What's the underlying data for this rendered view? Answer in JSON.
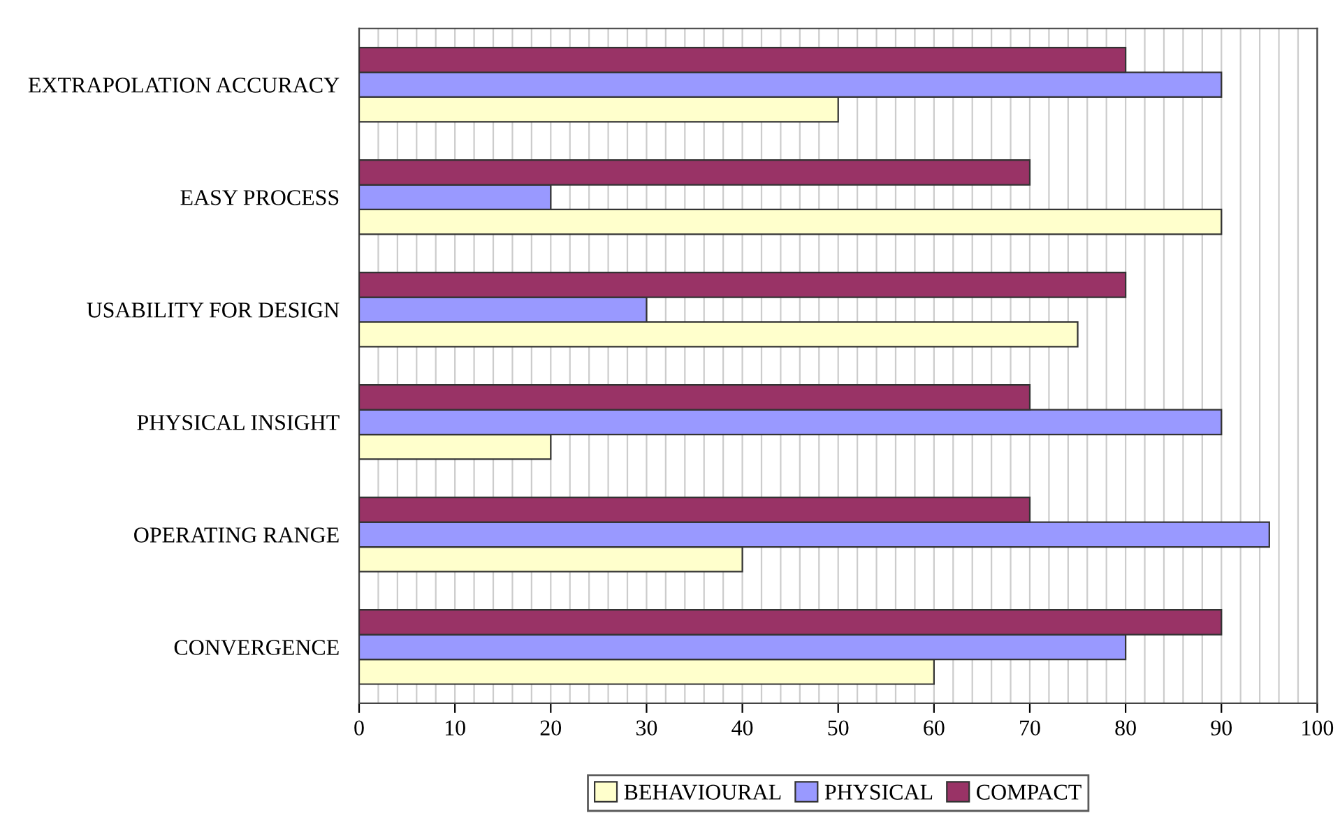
{
  "chart_data": {
    "type": "bar",
    "orientation": "horizontal",
    "categories": [
      "EXTRAPOLATION ACCURACY",
      "EASY PROCESS",
      "USABILITY FOR DESIGN",
      "PHYSICAL INSIGHT",
      "OPERATING RANGE",
      "CONVERGENCE"
    ],
    "series": [
      {
        "name": "BEHAVIOURAL",
        "color": "#ffffcc",
        "values": [
          50,
          90,
          75,
          20,
          40,
          60
        ]
      },
      {
        "name": "PHYSICAL",
        "color": "#9999ff",
        "values": [
          90,
          20,
          30,
          90,
          95,
          80
        ]
      },
      {
        "name": "COMPACT",
        "color": "#993366",
        "values": [
          80,
          70,
          80,
          70,
          70,
          90
        ]
      }
    ],
    "xlim": [
      0,
      100
    ],
    "xticks": [
      0,
      {
        "value": 2,
        "label": null
      },
      {
        "value": 4,
        "label": null
      },
      {
        "value": 6,
        "label": null
      },
      {
        "value": 8,
        "label": null
      },
      10,
      {
        "value": 12,
        "label": null
      },
      {
        "value": 14,
        "label": null
      },
      {
        "value": 16,
        "label": null
      },
      {
        "value": 18,
        "label": null
      },
      20,
      {
        "value": 22,
        "label": null
      },
      {
        "value": 24,
        "label": null
      },
      {
        "value": 26,
        "label": null
      },
      {
        "value": 28,
        "label": null
      },
      30,
      {
        "value": 32,
        "label": null
      },
      {
        "value": 34,
        "label": null
      },
      {
        "value": 36,
        "label": null
      },
      {
        "value": 38,
        "label": null
      },
      40,
      {
        "value": 42,
        "label": null
      },
      {
        "value": 44,
        "label": null
      },
      {
        "value": 46,
        "label": null
      },
      {
        "value": 48,
        "label": null
      },
      50,
      {
        "value": 52,
        "label": null
      },
      {
        "value": 54,
        "label": null
      },
      {
        "value": 56,
        "label": null
      },
      {
        "value": 58,
        "label": null
      },
      60,
      {
        "value": 62,
        "label": null
      },
      {
        "value": 64,
        "label": null
      },
      {
        "value": 66,
        "label": null
      },
      {
        "value": 68,
        "label": null
      },
      70,
      {
        "value": 72,
        "label": null
      },
      {
        "value": 74,
        "label": null
      },
      {
        "value": 76,
        "label": null
      },
      {
        "value": 78,
        "label": null
      },
      80,
      {
        "value": 82,
        "label": null
      },
      {
        "value": 84,
        "label": null
      },
      {
        "value": 86,
        "label": null
      },
      {
        "value": 88,
        "label": null
      },
      90,
      {
        "value": 92,
        "label": null
      },
      {
        "value": 94,
        "label": null
      },
      {
        "value": 96,
        "label": null
      },
      {
        "value": 98,
        "label": null
      },
      100
    ],
    "grid": "x",
    "legend": "bottom"
  }
}
